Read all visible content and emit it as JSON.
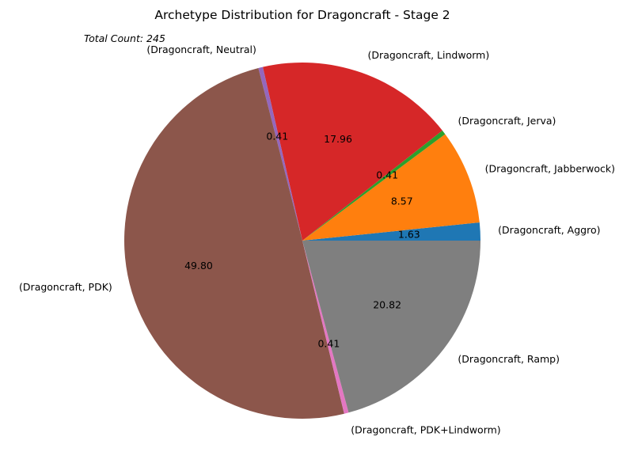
{
  "chart_data": {
    "type": "pie",
    "title": "Archetype Distribution for Dragoncraft - Stage 2",
    "annotation": "Total Count: 245",
    "slices": [
      {
        "label": "(Dragoncraft, Aggro)",
        "value": 1.63,
        "pct_text": "1.63",
        "color": "#1f77b4"
      },
      {
        "label": "(Dragoncraft, Jabberwock)",
        "value": 8.57,
        "pct_text": "8.57",
        "color": "#ff7f0e"
      },
      {
        "label": "(Dragoncraft, Jerva)",
        "value": 0.41,
        "pct_text": "0.41",
        "color": "#2ca02c"
      },
      {
        "label": "(Dragoncraft, Lindworm)",
        "value": 17.96,
        "pct_text": "17.96",
        "color": "#d62728"
      },
      {
        "label": "(Dragoncraft, Neutral)",
        "value": 0.41,
        "pct_text": "0.41",
        "color": "#9467bd"
      },
      {
        "label": "(Dragoncraft, PDK)",
        "value": 49.8,
        "pct_text": "49.80",
        "color": "#8c564b"
      },
      {
        "label": "(Dragoncraft, PDK+Lindworm)",
        "value": 0.41,
        "pct_text": "0.41",
        "color": "#e377c2"
      },
      {
        "label": "(Dragoncraft, Ramp)",
        "value": 20.82,
        "pct_text": "20.82",
        "color": "#7f7f7f"
      }
    ],
    "start_angle_deg": 0,
    "direction": "counterclockwise"
  }
}
